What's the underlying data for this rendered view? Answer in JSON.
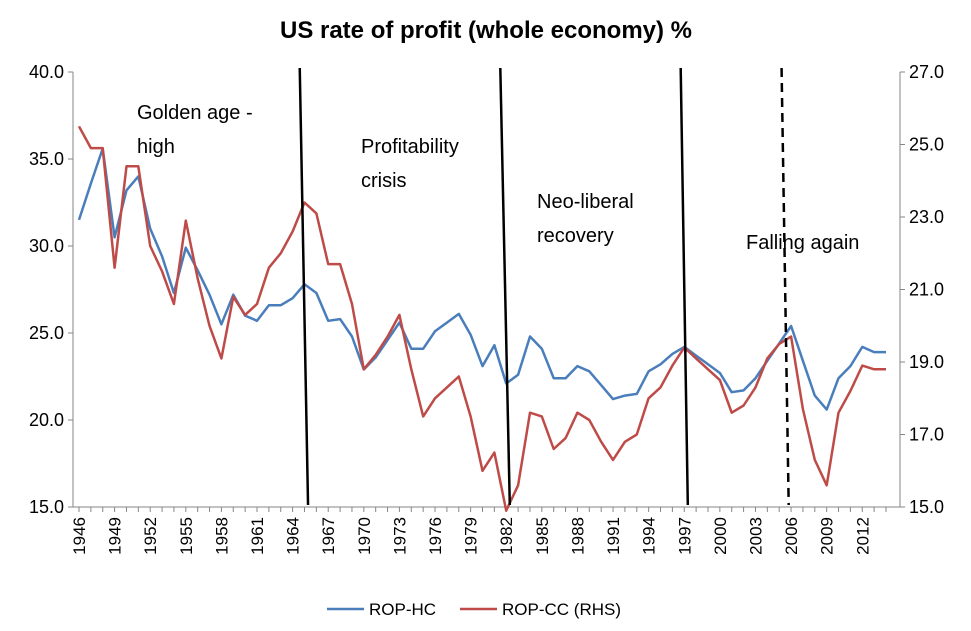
{
  "chart_data": {
    "type": "line",
    "title": "US rate of profit (whole economy) %",
    "x": [
      1946,
      1947,
      1948,
      1949,
      1950,
      1951,
      1952,
      1953,
      1954,
      1955,
      1956,
      1957,
      1958,
      1959,
      1960,
      1961,
      1962,
      1963,
      1964,
      1965,
      1966,
      1967,
      1968,
      1969,
      1970,
      1971,
      1972,
      1973,
      1974,
      1975,
      1976,
      1977,
      1978,
      1979,
      1980,
      1981,
      1982,
      1983,
      1984,
      1985,
      1986,
      1987,
      1988,
      1989,
      1990,
      1991,
      1992,
      1993,
      1994,
      1995,
      1996,
      1997,
      1998,
      1999,
      2000,
      2001,
      2002,
      2003,
      2004,
      2005,
      2006,
      2007,
      2008,
      2009,
      2010,
      2011,
      2012,
      2013,
      2014
    ],
    "x_tick_labels": [
      "1946",
      "1949",
      "1952",
      "1955",
      "1958",
      "1961",
      "1964",
      "1967",
      "1970",
      "1973",
      "1976",
      "1979",
      "1982",
      "1985",
      "1988",
      "1991",
      "1994",
      "1997",
      "2000",
      "2003",
      "2006",
      "2009",
      "2012"
    ],
    "y_left": {
      "min": 15,
      "max": 40,
      "step": 5,
      "tick_labels": [
        "15.0",
        "20.0",
        "25.0",
        "30.0",
        "35.0",
        "40.0"
      ]
    },
    "y_right": {
      "min": 15,
      "max": 27,
      "step": 2,
      "tick_labels": [
        "15.0",
        "17.0",
        "19.0",
        "21.0",
        "23.0",
        "25.0",
        "27.0"
      ]
    },
    "series": [
      {
        "name": "ROP-HC",
        "axis": "left",
        "color": "#4a7ebb",
        "values": [
          31.5,
          33.6,
          35.6,
          30.5,
          33.2,
          34.0,
          31.0,
          29.4,
          27.3,
          29.9,
          28.6,
          27.2,
          25.5,
          27.2,
          26.0,
          25.7,
          26.6,
          26.6,
          27.0,
          27.8,
          27.3,
          25.7,
          25.8,
          24.8,
          22.9,
          23.6,
          24.6,
          25.6,
          24.1,
          24.1,
          25.1,
          25.6,
          26.1,
          24.9,
          23.1,
          24.3,
          22.1,
          22.6,
          24.8,
          24.1,
          22.4,
          22.4,
          23.1,
          22.8,
          22.0,
          21.2,
          21.4,
          21.5,
          22.8,
          23.2,
          23.8,
          24.2,
          23.7,
          23.2,
          22.7,
          21.6,
          21.7,
          22.4,
          23.4,
          24.4,
          25.4,
          23.4,
          21.4,
          20.6,
          22.4,
          23.1,
          24.2,
          23.9,
          23.9
        ]
      },
      {
        "name": "ROP-CC (RHS)",
        "axis": "right",
        "color": "#be4b48",
        "values": [
          25.5,
          24.9,
          24.9,
          21.6,
          24.4,
          24.4,
          22.2,
          21.5,
          20.6,
          22.9,
          21.3,
          20.0,
          19.1,
          20.8,
          20.3,
          20.6,
          21.6,
          22.0,
          22.6,
          23.4,
          23.1,
          21.7,
          21.7,
          20.6,
          18.8,
          19.2,
          19.7,
          20.3,
          18.8,
          17.5,
          18.0,
          18.3,
          18.6,
          17.5,
          16.0,
          16.5,
          14.9,
          15.6,
          17.6,
          17.5,
          16.6,
          16.9,
          17.6,
          17.4,
          16.8,
          16.3,
          16.8,
          17.0,
          18.0,
          18.3,
          18.9,
          19.4,
          19.1,
          18.8,
          18.5,
          17.6,
          17.8,
          18.3,
          19.1,
          19.5,
          19.7,
          17.7,
          16.3,
          15.6,
          17.6,
          18.2,
          18.9,
          18.8,
          18.8
        ]
      }
    ],
    "dividers": [
      {
        "top_x": 1964.6,
        "bottom_x": 1965.3,
        "style": "solid"
      },
      {
        "top_x": 1981.5,
        "bottom_x": 1982.3,
        "style": "solid"
      },
      {
        "top_x": 1996.7,
        "bottom_x": 1997.3,
        "style": "solid"
      },
      {
        "top_x": 2005.2,
        "bottom_x": 2005.8,
        "style": "dashed"
      }
    ],
    "annotations": [
      {
        "lines": [
          "Golden age -",
          "high"
        ]
      },
      {
        "lines": [
          "Profitability",
          "crisis"
        ]
      },
      {
        "lines": [
          "Neo-liberal",
          "recovery"
        ]
      },
      {
        "lines": [
          "Falling again"
        ]
      }
    ],
    "legend_position": "bottom",
    "grid": false
  }
}
